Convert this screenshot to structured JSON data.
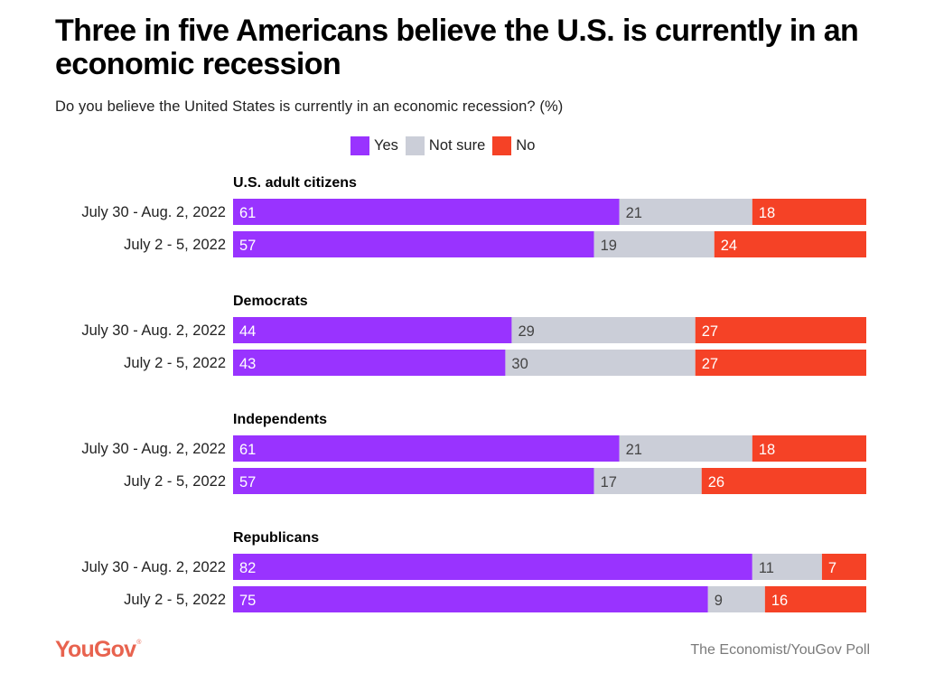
{
  "title": "Three in five Americans believe the U.S. is currently in an economic recession",
  "subtitle": "Do you believe the United States is currently in an economic recession? (%)",
  "legend": [
    {
      "label": "Yes",
      "color": "#9933ff"
    },
    {
      "label": "Not sure",
      "color": "#cbced8"
    },
    {
      "label": "No",
      "color": "#f54226"
    }
  ],
  "footer": {
    "logo": "YouGov",
    "logo_mark": "®",
    "source": "The Economist/YouGov Poll"
  },
  "chart_data": {
    "type": "bar",
    "orientation": "horizontal",
    "stacked": true,
    "title": "Three in five Americans believe the U.S. is currently in an economic recession",
    "subtitle": "Do you believe the United States is currently in an economic recession? (%)",
    "xlabel": "",
    "ylabel": "",
    "xlim": [
      0,
      100
    ],
    "grid": false,
    "legend_position": "top-center",
    "series_names": [
      "Yes",
      "Not sure",
      "No"
    ],
    "series_colors": [
      "#9933ff",
      "#cbced8",
      "#f54226"
    ],
    "label_colors": [
      "#ffffff",
      "#444444",
      "#ffffff"
    ],
    "groups": [
      {
        "name": "U.S. adult citizens",
        "rows": [
          {
            "label": "July 30 - Aug. 2, 2022",
            "values": [
              61,
              21,
              18
            ]
          },
          {
            "label": "July 2 - 5, 2022",
            "values": [
              57,
              19,
              24
            ]
          }
        ]
      },
      {
        "name": "Democrats",
        "rows": [
          {
            "label": "July 30 - Aug. 2, 2022",
            "values": [
              44,
              29,
              27
            ]
          },
          {
            "label": "July 2 - 5, 2022",
            "values": [
              43,
              30,
              27
            ]
          }
        ]
      },
      {
        "name": "Independents",
        "rows": [
          {
            "label": "July 30 - Aug. 2, 2022",
            "values": [
              61,
              21,
              18
            ]
          },
          {
            "label": "July 2 - 5, 2022",
            "values": [
              57,
              17,
              26
            ]
          }
        ]
      },
      {
        "name": "Republicans",
        "rows": [
          {
            "label": "July 30 - Aug. 2, 2022",
            "values": [
              82,
              11,
              7
            ]
          },
          {
            "label": "July 2 - 5, 2022",
            "values": [
              75,
              9,
              16
            ]
          }
        ]
      }
    ]
  }
}
